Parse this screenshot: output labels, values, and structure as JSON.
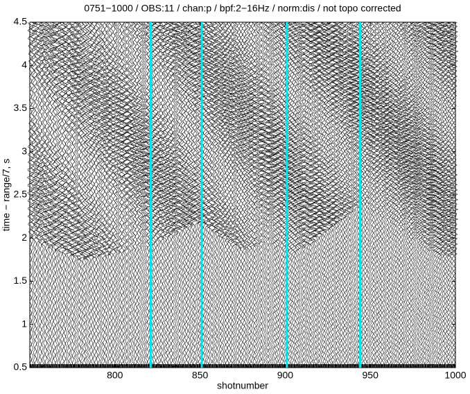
{
  "chart_data": {
    "type": "wiggle",
    "title": "0751−1000 / OBS:11 / chan:p / bpf:2−16Hz / norm:dis / not topo corrected",
    "xlabel": "shotnumber",
    "ylabel": "time − range/7, s",
    "xlim": [
      750,
      1000
    ],
    "ylim": [
      0.5,
      4.5
    ],
    "xticks": [
      800,
      850,
      900,
      950,
      1000
    ],
    "yticks": [
      0.5,
      1,
      1.5,
      2,
      2.5,
      3,
      3.5,
      4,
      4.5
    ],
    "marker_shots": [
      821,
      851,
      901,
      944
    ],
    "marker_color": "#00e5ee"
  }
}
